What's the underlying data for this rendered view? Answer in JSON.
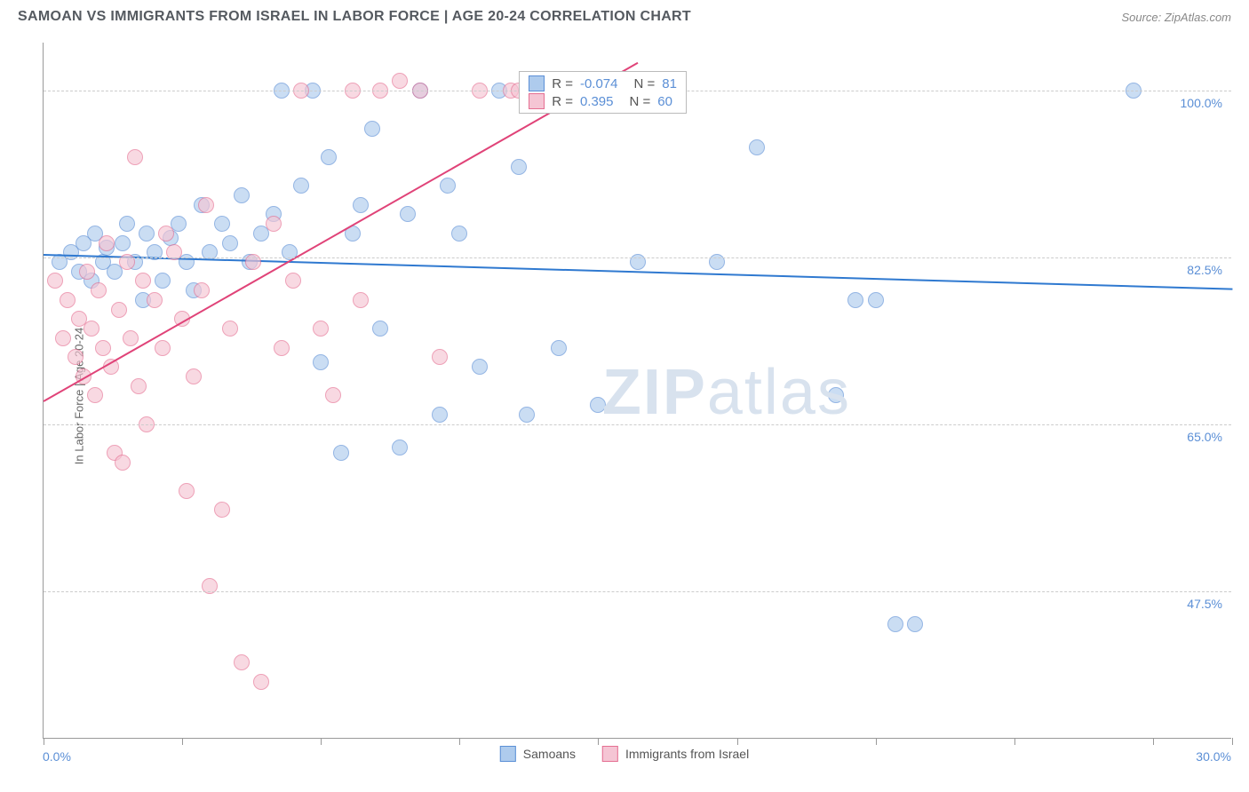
{
  "header": {
    "title": "SAMOAN VS IMMIGRANTS FROM ISRAEL IN LABOR FORCE | AGE 20-24 CORRELATION CHART",
    "source": "Source: ZipAtlas.com"
  },
  "chart": {
    "type": "scatter",
    "y_axis_label": "In Labor Force | Age 20-24",
    "xlim": [
      0,
      30
    ],
    "ylim": [
      32,
      105
    ],
    "x_tick_positions": [
      0,
      3.5,
      7,
      10.5,
      14,
      17.5,
      21,
      24.5,
      28,
      30
    ],
    "x_tick_labels": {
      "first": "0.0%",
      "last": "30.0%"
    },
    "y_gridlines": [
      47.5,
      65.0,
      82.5,
      100.0
    ],
    "y_tick_labels": [
      "47.5%",
      "65.0%",
      "82.5%",
      "100.0%"
    ],
    "grid_color": "#cccccc",
    "background_color": "#ffffff",
    "watermark": {
      "text_bold": "ZIP",
      "text_light": "atlas"
    },
    "series": [
      {
        "name": "Samoans",
        "color_fill": "#aecbed",
        "color_stroke": "#5b8fd6",
        "marker_size": 18,
        "opacity": 0.65,
        "r_value": "-0.074",
        "n_value": "81",
        "trend": {
          "x1": 0,
          "y1": 82.8,
          "x2": 30,
          "y2": 79.2,
          "color": "#2f79d0",
          "width": 2
        },
        "points": [
          [
            0.4,
            82
          ],
          [
            0.7,
            83
          ],
          [
            0.9,
            81
          ],
          [
            1.0,
            84
          ],
          [
            1.2,
            80
          ],
          [
            1.3,
            85
          ],
          [
            1.5,
            82
          ],
          [
            1.6,
            83.5
          ],
          [
            1.8,
            81
          ],
          [
            2.0,
            84
          ],
          [
            2.1,
            86
          ],
          [
            2.3,
            82
          ],
          [
            2.5,
            78
          ],
          [
            2.6,
            85
          ],
          [
            2.8,
            83
          ],
          [
            3.0,
            80
          ],
          [
            3.2,
            84.5
          ],
          [
            3.4,
            86
          ],
          [
            3.6,
            82
          ],
          [
            3.8,
            79
          ],
          [
            4.0,
            88
          ],
          [
            4.2,
            83
          ],
          [
            4.5,
            86
          ],
          [
            4.7,
            84
          ],
          [
            5.0,
            89
          ],
          [
            5.2,
            82
          ],
          [
            5.5,
            85
          ],
          [
            5.8,
            87
          ],
          [
            6.0,
            100
          ],
          [
            6.2,
            83
          ],
          [
            6.5,
            90
          ],
          [
            6.8,
            100
          ],
          [
            7.0,
            71.5
          ],
          [
            7.2,
            93
          ],
          [
            7.5,
            62
          ],
          [
            7.8,
            85
          ],
          [
            8.0,
            88
          ],
          [
            8.3,
            96
          ],
          [
            8.5,
            75
          ],
          [
            9.0,
            62.5
          ],
          [
            9.2,
            87
          ],
          [
            9.5,
            100
          ],
          [
            10.0,
            66
          ],
          [
            10.2,
            90
          ],
          [
            10.5,
            85
          ],
          [
            11.0,
            71
          ],
          [
            11.5,
            100
          ],
          [
            12.0,
            92
          ],
          [
            12.2,
            66
          ],
          [
            12.5,
            100
          ],
          [
            13.0,
            73
          ],
          [
            13.5,
            101
          ],
          [
            14.0,
            67
          ],
          [
            15.0,
            82
          ],
          [
            15.5,
            101
          ],
          [
            16.0,
            100
          ],
          [
            17.0,
            82
          ],
          [
            18.0,
            94
          ],
          [
            20.0,
            68
          ],
          [
            20.5,
            78
          ],
          [
            21.0,
            78
          ],
          [
            21.5,
            44
          ],
          [
            22.0,
            44
          ],
          [
            27.5,
            100
          ]
        ]
      },
      {
        "name": "Immigrants from Israel",
        "color_fill": "#f5c5d4",
        "color_stroke": "#e56f92",
        "marker_size": 18,
        "opacity": 0.65,
        "r_value": "0.395",
        "n_value": "60",
        "trend": {
          "x1": 0,
          "y1": 67.5,
          "x2": 15,
          "y2": 103,
          "color": "#e04378",
          "width": 2
        },
        "points": [
          [
            0.3,
            80
          ],
          [
            0.5,
            74
          ],
          [
            0.6,
            78
          ],
          [
            0.8,
            72
          ],
          [
            0.9,
            76
          ],
          [
            1.0,
            70
          ],
          [
            1.1,
            81
          ],
          [
            1.2,
            75
          ],
          [
            1.3,
            68
          ],
          [
            1.4,
            79
          ],
          [
            1.5,
            73
          ],
          [
            1.6,
            84
          ],
          [
            1.7,
            71
          ],
          [
            1.8,
            62
          ],
          [
            1.9,
            77
          ],
          [
            2.0,
            61
          ],
          [
            2.1,
            82
          ],
          [
            2.2,
            74
          ],
          [
            2.3,
            93
          ],
          [
            2.4,
            69
          ],
          [
            2.5,
            80
          ],
          [
            2.6,
            65
          ],
          [
            2.8,
            78
          ],
          [
            3.0,
            73
          ],
          [
            3.1,
            85
          ],
          [
            3.3,
            83
          ],
          [
            3.5,
            76
          ],
          [
            3.6,
            58
          ],
          [
            3.8,
            70
          ],
          [
            4.0,
            79
          ],
          [
            4.1,
            88
          ],
          [
            4.2,
            48
          ],
          [
            4.5,
            56
          ],
          [
            4.7,
            75
          ],
          [
            5.0,
            40
          ],
          [
            5.3,
            82
          ],
          [
            5.5,
            38
          ],
          [
            5.8,
            86
          ],
          [
            6.0,
            73
          ],
          [
            6.3,
            80
          ],
          [
            6.5,
            100
          ],
          [
            7.0,
            75
          ],
          [
            7.3,
            68
          ],
          [
            7.8,
            100
          ],
          [
            8.0,
            78
          ],
          [
            8.5,
            100
          ],
          [
            9.0,
            101
          ],
          [
            9.5,
            100
          ],
          [
            10.0,
            72
          ],
          [
            11.0,
            100
          ],
          [
            11.8,
            100
          ],
          [
            12.0,
            100
          ],
          [
            12.2,
            100
          ],
          [
            13.0,
            101
          ]
        ]
      }
    ],
    "legend_top": {
      "r_label": "R =",
      "n_label": "N ="
    },
    "legend_bottom": {
      "items": [
        "Samoans",
        "Immigrants from Israel"
      ]
    }
  }
}
